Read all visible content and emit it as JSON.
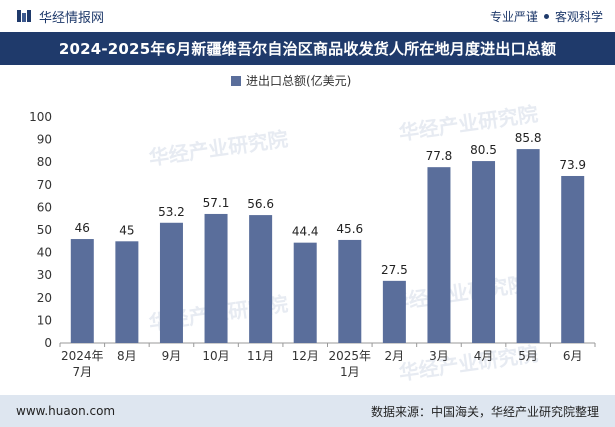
{
  "header": {
    "brand_name": "华经情报网",
    "tagline_left": "专业严谨",
    "tagline_right": "客观科学",
    "title": "2024-2025年6月新疆维吾尔自治区商品收发货人所在地月度进出口总额"
  },
  "footer": {
    "url": "www.huaon.com",
    "source": "数据来源：中国海关，华经产业研究院整理"
  },
  "watermark": {
    "text_cn": "华经产业研究院",
    "text_url": "www.huaon.com"
  },
  "colors": {
    "bar": "#5a6e9b",
    "title_band": "#1f3a6b",
    "footer_bg": "#dee6f0"
  },
  "chart_data": {
    "type": "bar",
    "title": "2024-2025年6月新疆维吾尔自治区商品收发货人所在地月度进出口总额",
    "legend": "进出口总额(亿美元)",
    "legend_position": "top-center",
    "categories": [
      [
        "2024年",
        "7月"
      ],
      [
        "8月"
      ],
      [
        "9月"
      ],
      [
        "10月"
      ],
      [
        "11月"
      ],
      [
        "12月"
      ],
      [
        "2025年",
        "1月"
      ],
      [
        "2月"
      ],
      [
        "3月"
      ],
      [
        "4月"
      ],
      [
        "5月"
      ],
      [
        "6月"
      ]
    ],
    "values": [
      46,
      45,
      53.2,
      57.1,
      56.6,
      44.4,
      45.6,
      27.5,
      77.8,
      80.5,
      85.8,
      73.9
    ],
    "value_labels": [
      "46",
      "45",
      "53.2",
      "57.1",
      "56.6",
      "44.4",
      "45.6",
      "27.5",
      "77.8",
      "80.5",
      "85.8",
      "73.9"
    ],
    "ylim": [
      0,
      100
    ],
    "yticks": [
      0,
      10,
      20,
      30,
      40,
      50,
      60,
      70,
      80,
      90,
      100
    ],
    "xlabel": "",
    "ylabel": "",
    "grid": false
  }
}
